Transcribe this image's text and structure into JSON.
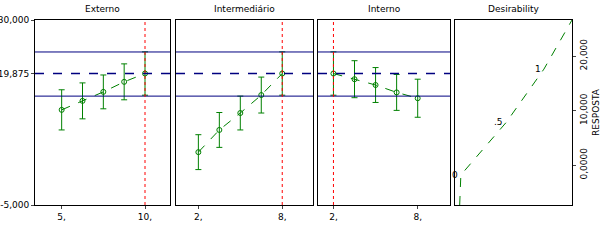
{
  "chart_data": [
    {
      "type": "scatter",
      "title": "Externo",
      "x": [
        5,
        6.25,
        7.5,
        8.75,
        10
      ],
      "values": [
        13.0,
        14.7,
        16.4,
        18.3,
        19.875
      ],
      "error": [
        3.8,
        3.4,
        3.2,
        3.4,
        4.1
      ],
      "color": "#008000",
      "marker": "circle-open",
      "line_style": "dash",
      "xlim": [
        3.4,
        11.5
      ],
      "xticks": [
        {
          "value": 5,
          "label": "5,"
        },
        {
          "value": 10,
          "label": "10,"
        }
      ],
      "ylim": [
        -5,
        30
      ],
      "yticks": [
        {
          "value": -5,
          "label": "-5,000"
        },
        {
          "value": 19.875,
          "label": "19,875"
        },
        {
          "value": 30,
          "label": "30,000"
        }
      ],
      "predicted": 19.875,
      "lower_limit": 15.6,
      "upper_limit": 23.95,
      "current": 10,
      "grid": false
    },
    {
      "type": "scatter",
      "title": "Intermediário",
      "x": [
        2,
        3.5,
        5,
        6.5,
        8
      ],
      "values": [
        5.0,
        9.2,
        12.4,
        15.8,
        19.875
      ],
      "error": [
        3.3,
        3.3,
        3.2,
        3.4,
        4.1
      ],
      "color": "#008000",
      "marker": "circle-open",
      "line_style": "dash",
      "xlim": [
        0.4,
        10.2
      ],
      "xticks": [
        {
          "value": 2,
          "label": "2,"
        },
        {
          "value": 8,
          "label": "8,"
        }
      ],
      "ylim": [
        -5,
        30
      ],
      "predicted": 19.875,
      "lower_limit": 15.6,
      "upper_limit": 23.95,
      "current": 8,
      "tick_labels": "x",
      "grid": false
    },
    {
      "type": "scatter",
      "title": "Interno",
      "x": [
        2,
        3.5,
        5,
        6.5,
        8
      ],
      "values": [
        19.875,
        18.8,
        17.7,
        16.3,
        15.2
      ],
      "error": [
        4.1,
        3.5,
        3.3,
        3.4,
        3.6
      ],
      "color": "#008000",
      "marker": "circle-open",
      "line_style": "dash",
      "xlim": [
        0.9,
        10.3
      ],
      "xticks": [
        {
          "value": 2,
          "label": "2,"
        },
        {
          "value": 8,
          "label": "8,"
        }
      ],
      "ylim": [
        -5,
        30
      ],
      "predicted": 19.875,
      "lower_limit": 15.6,
      "upper_limit": 23.95,
      "current": 2,
      "tick_labels": "x",
      "grid": false
    },
    {
      "type": "line",
      "title": "Desirability",
      "ylabel": "RESPOSTA",
      "x": [
        0.04,
        0.05,
        0.44,
        0.76,
        1.0
      ],
      "values": [
        -7.3,
        -1.8,
        7.9,
        17.6,
        26.6
      ],
      "point_labels": [
        null,
        "0",
        ".5",
        "1",
        null
      ],
      "color": "#008000",
      "line_style": "dash",
      "xlim": [
        0,
        1
      ],
      "ylim": [
        -7.3,
        26.6
      ],
      "yticks": [
        {
          "value": 0,
          "label": "0,0000"
        },
        {
          "value": 10,
          "label": "10,000"
        },
        {
          "value": 20,
          "label": "20,000"
        }
      ],
      "tick_labels": "y",
      "grid": false
    }
  ]
}
